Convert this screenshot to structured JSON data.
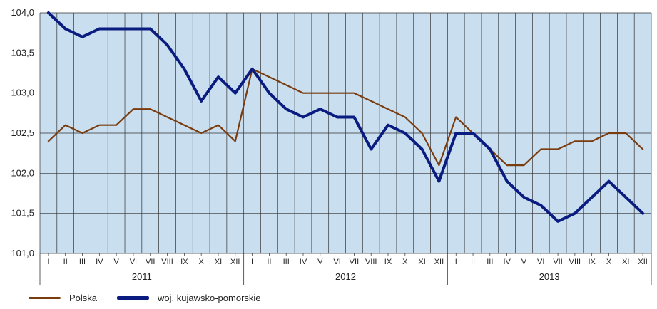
{
  "chart_data": {
    "type": "line",
    "ylim": [
      101.0,
      104.0
    ],
    "yticks": [
      "101,0",
      "101,5",
      "102,0",
      "102,5",
      "103,0",
      "103,5",
      "104,0"
    ],
    "months": [
      "I",
      "II",
      "III",
      "IV",
      "V",
      "VI",
      "VII",
      "VIII",
      "IX",
      "X",
      "XI",
      "XII",
      "I",
      "II",
      "III",
      "IV",
      "V",
      "VI",
      "VII",
      "VIII",
      "IX",
      "X",
      "XI",
      "XII",
      "I",
      "II",
      "III",
      "IV",
      "V",
      "VI",
      "VII",
      "VIII",
      "IX",
      "X",
      "XI",
      "XII"
    ],
    "years": [
      "2011",
      "2012",
      "2013"
    ],
    "grid": true,
    "legend_position": "bottom",
    "series": [
      {
        "name": "Polska",
        "color": "#7a3b0e",
        "values": [
          102.4,
          102.6,
          102.5,
          102.6,
          102.6,
          102.8,
          102.8,
          102.7,
          102.6,
          102.5,
          102.6,
          102.4,
          103.3,
          103.2,
          103.1,
          103.0,
          103.0,
          103.0,
          103.0,
          102.9,
          102.8,
          102.7,
          102.5,
          102.1,
          102.7,
          102.5,
          102.3,
          102.1,
          102.1,
          102.3,
          102.3,
          102.4,
          102.4,
          102.5,
          102.5,
          102.3
        ]
      },
      {
        "name": "woj. kujawsko-pomorskie",
        "color": "#0a1c80",
        "values": [
          104.0,
          103.8,
          103.7,
          103.8,
          103.8,
          103.8,
          103.8,
          103.6,
          103.3,
          102.9,
          103.2,
          103.0,
          103.3,
          103.0,
          102.8,
          102.7,
          102.8,
          102.7,
          102.7,
          102.3,
          102.6,
          102.5,
          102.3,
          101.9,
          102.5,
          102.5,
          102.3,
          101.9,
          101.7,
          101.6,
          101.4,
          101.5,
          101.7,
          101.9,
          101.7,
          101.5
        ]
      }
    ]
  }
}
